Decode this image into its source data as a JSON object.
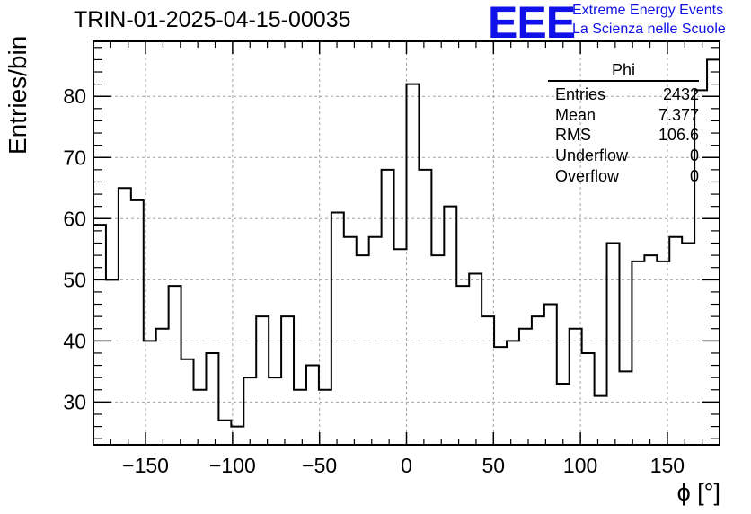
{
  "header": {
    "title": "TRIN-01-2025-04-15-00035",
    "logo_text": "EEE",
    "brand_line1": "Extreme Energy Events",
    "brand_line2": "La Scienza nelle Scuole"
  },
  "stats_box": {
    "name": "Phi",
    "rows": [
      {
        "label": "Entries",
        "value": "2432"
      },
      {
        "label": "Mean",
        "value": "7.377"
      },
      {
        "label": "RMS",
        "value": "106.6"
      },
      {
        "label": "Underflow",
        "value": "0"
      },
      {
        "label": "Overflow",
        "value": "0"
      }
    ]
  },
  "colors": {
    "brand": "#1010e8",
    "line": "#000000",
    "grid": "#a0a0a0"
  },
  "chart_data": {
    "type": "histogram",
    "title": "TRIN-01-2025-04-15-00035",
    "xlabel": "ϕ [°]",
    "ylabel": "Entries/bin",
    "xlim": [
      -180,
      180
    ],
    "ylim": [
      23,
      89
    ],
    "bin_width": 7.2,
    "grid": true,
    "x_ticks": [
      -150,
      -100,
      -50,
      0,
      50,
      100,
      150
    ],
    "x_tick_labels": [
      "−150",
      "−100",
      "−50",
      "0",
      "50",
      "100",
      "150"
    ],
    "y_ticks": [
      30,
      40,
      50,
      60,
      70,
      80
    ],
    "y_tick_labels": [
      "30",
      "40",
      "50",
      "60",
      "70",
      "80"
    ],
    "values": [
      59,
      50,
      65,
      63,
      40,
      42,
      49,
      37,
      32,
      38,
      27,
      26,
      34,
      44,
      34,
      44,
      32,
      36,
      32,
      61,
      57,
      54,
      57,
      68,
      55,
      82,
      68,
      54,
      62,
      49,
      51,
      44,
      39,
      40,
      42,
      44,
      46,
      33,
      42,
      38,
      31,
      56,
      35,
      53,
      54,
      53,
      57,
      56,
      81,
      86
    ]
  }
}
